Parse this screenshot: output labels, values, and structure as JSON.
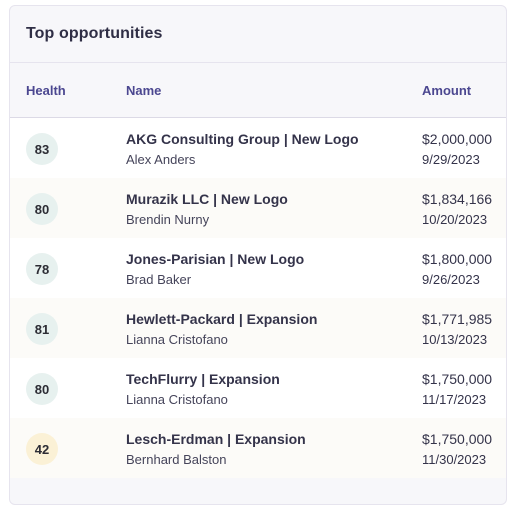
{
  "card": {
    "title": "Top opportunities"
  },
  "table": {
    "headers": {
      "health": "Health",
      "name": "Name",
      "amount": "Amount"
    },
    "rows": [
      {
        "health": "83",
        "status": "good",
        "name": "AKG Consulting Group | New Logo",
        "owner": "Alex Anders",
        "amount": "$2,000,000",
        "close_date": "9/29/2023"
      },
      {
        "health": "80",
        "status": "good",
        "name": "Murazik LLC | New Logo",
        "owner": "Brendin Nurny",
        "amount": "$1,834,166",
        "close_date": "10/20/2023"
      },
      {
        "health": "78",
        "status": "good",
        "name": "Jones-Parisian | New Logo",
        "owner": "Brad Baker",
        "amount": "$1,800,000",
        "close_date": "9/26/2023"
      },
      {
        "health": "81",
        "status": "good",
        "name": "Hewlett-Packard | Expansion",
        "owner": "Lianna Cristofano",
        "amount": "$1,771,985",
        "close_date": "10/13/2023"
      },
      {
        "health": "80",
        "status": "good",
        "name": "TechFlurry | Expansion",
        "owner": "Lianna Cristofano",
        "amount": "$1,750,000",
        "close_date": "11/17/2023"
      },
      {
        "health": "42",
        "status": "warn",
        "name": "Lesch-Erdman | Expansion",
        "owner": "Bernhard Balston",
        "amount": "$1,750,000",
        "close_date": "11/30/2023"
      }
    ]
  },
  "colors": {
    "health_good_bg": "#e7f1ef",
    "health_warn_bg": "#fbf1d6",
    "header_text": "#4b4790"
  }
}
